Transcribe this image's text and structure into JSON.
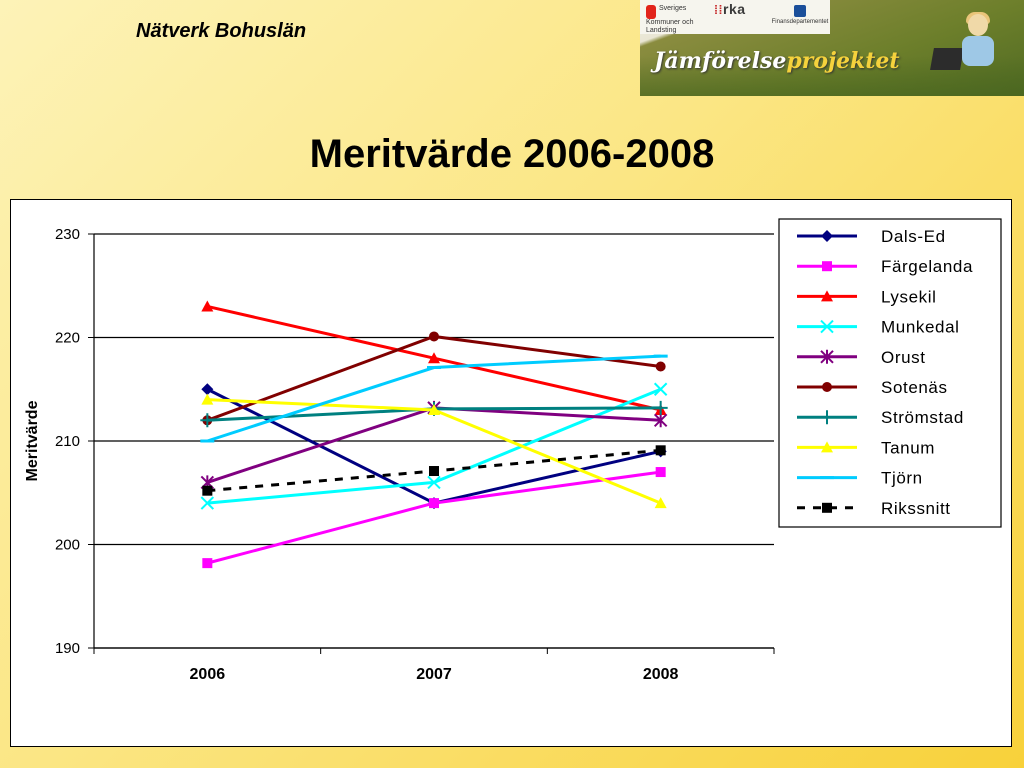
{
  "header": {
    "org_name": "Nätverk Bohuslän",
    "banner": {
      "logo_skl": "Sveriges Kommuner och Landsting",
      "logo_rka": "rka",
      "logo_fin": "Finansdepartementet",
      "project_prefix": "Jämförelse",
      "project_suffix": "projektet"
    }
  },
  "slide_title": "Meritvärde 2006-2008",
  "colors": {
    "background_gradient": [
      "#fdf3b8",
      "#f8d13a"
    ],
    "plot_background": "#ffffff"
  },
  "chart_data": {
    "type": "line",
    "title": "",
    "ylabel": "Meritvärde",
    "xlabel": "",
    "categories": [
      "2006",
      "2007",
      "2008"
    ],
    "ylim": [
      190,
      230
    ],
    "yticks": [
      190,
      200,
      210,
      220,
      230
    ],
    "grid": "horizontal",
    "legend_position": "right",
    "series": [
      {
        "name": "Dals-Ed",
        "values": [
          215,
          204,
          209
        ],
        "color": "#000080",
        "marker": "diamond",
        "dash": false
      },
      {
        "name": "Färgelanda",
        "values": [
          198.2,
          204,
          207
        ],
        "color": "#ff00ff",
        "marker": "square",
        "dash": false
      },
      {
        "name": "Lysekil",
        "values": [
          223,
          218,
          213
        ],
        "color": "#ff0000",
        "marker": "triangle",
        "dash": false
      },
      {
        "name": "Munkedal",
        "values": [
          204,
          206,
          215
        ],
        "color": "#00ffff",
        "marker": "x",
        "dash": false
      },
      {
        "name": "Orust",
        "values": [
          206,
          213.2,
          212
        ],
        "color": "#800080",
        "marker": "star",
        "dash": false
      },
      {
        "name": "Sotenäs",
        "values": [
          212,
          220.1,
          217.2
        ],
        "color": "#800000",
        "marker": "circle",
        "dash": false
      },
      {
        "name": "Strömstad",
        "values": [
          212,
          213.1,
          213.2
        ],
        "color": "#008080",
        "marker": "plus",
        "dash": false
      },
      {
        "name": "Tanum",
        "values": [
          214,
          213,
          204
        ],
        "color": "#ffff00",
        "marker": "triangle",
        "dash": false
      },
      {
        "name": "Tjörn",
        "values": [
          210,
          217.1,
          218.2
        ],
        "color": "#00ccff",
        "marker": "dash",
        "dash": false
      },
      {
        "name": "Rikssnitt",
        "values": [
          205.2,
          207.1,
          209.1
        ],
        "color": "#000000",
        "marker": "square",
        "dash": true
      }
    ]
  }
}
